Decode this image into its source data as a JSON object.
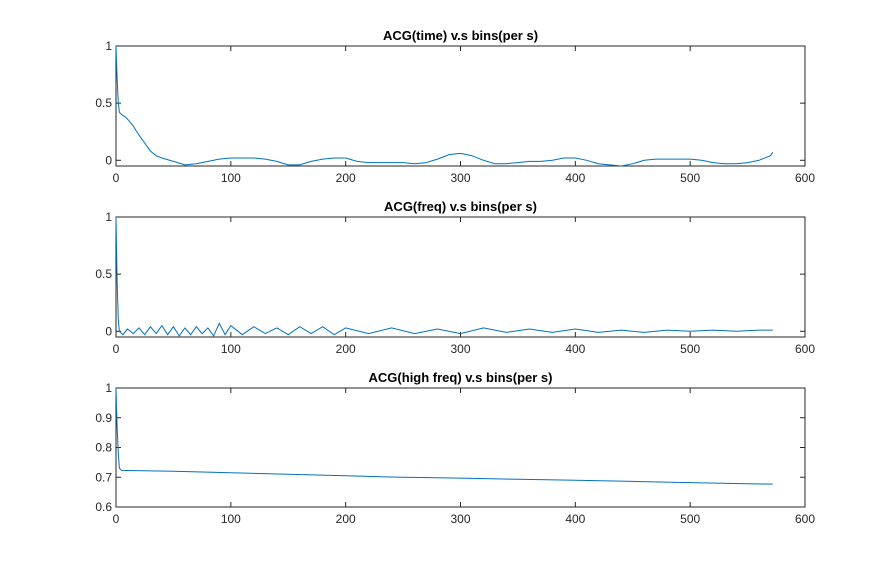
{
  "colors": {
    "series": "#0072BD",
    "axes": "#262626"
  },
  "chart_data": [
    {
      "type": "line",
      "title": "ACG(time) v.s bins(per s)",
      "xlabel": "",
      "ylabel": "",
      "xlim": [
        0,
        600
      ],
      "ylim": [
        -0.05,
        1
      ],
      "xticks": [
        0,
        100,
        200,
        300,
        400,
        500,
        600
      ],
      "yticks": [
        0,
        0.5,
        1
      ],
      "xtick_labels": [
        "0",
        "100",
        "200",
        "300",
        "400",
        "500",
        "600"
      ],
      "ytick_labels": [
        "0",
        "0.5",
        "1"
      ],
      "grid": false,
      "series": [
        {
          "x": [
            0,
            1,
            2,
            3,
            5,
            8,
            10,
            15,
            20,
            25,
            30,
            35,
            40,
            50,
            60,
            70,
            80,
            90,
            100,
            110,
            120,
            130,
            140,
            150,
            160,
            170,
            180,
            190,
            200,
            210,
            220,
            230,
            240,
            250,
            260,
            270,
            280,
            290,
            300,
            310,
            320,
            330,
            340,
            350,
            360,
            370,
            380,
            390,
            400,
            410,
            420,
            430,
            440,
            450,
            460,
            470,
            480,
            490,
            500,
            510,
            520,
            530,
            540,
            550,
            560,
            570,
            572
          ],
          "values": [
            1,
            0.72,
            0.5,
            0.42,
            0.4,
            0.38,
            0.36,
            0.3,
            0.22,
            0.15,
            0.08,
            0.04,
            0.02,
            -0.01,
            -0.04,
            -0.03,
            -0.01,
            0.01,
            0.02,
            0.02,
            0.02,
            0.01,
            -0.01,
            -0.04,
            -0.04,
            -0.01,
            0.01,
            0.02,
            0.02,
            -0.01,
            -0.02,
            -0.02,
            -0.02,
            -0.02,
            -0.03,
            -0.02,
            0.01,
            0.05,
            0.06,
            0.04,
            0.0,
            -0.03,
            -0.03,
            -0.02,
            -0.01,
            -0.01,
            0.0,
            0.02,
            0.02,
            0.0,
            -0.03,
            -0.04,
            -0.05,
            -0.03,
            0.0,
            0.01,
            0.01,
            0.01,
            0.01,
            0.0,
            -0.02,
            -0.03,
            -0.03,
            -0.02,
            0.0,
            0.04,
            0.07
          ]
        }
      ]
    },
    {
      "type": "line",
      "title": "ACG(freq) v.s bins(per s)",
      "xlabel": "",
      "ylabel": "",
      "xlim": [
        0,
        600
      ],
      "ylim": [
        -0.05,
        1
      ],
      "xticks": [
        0,
        100,
        200,
        300,
        400,
        500,
        600
      ],
      "yticks": [
        0,
        0.5,
        1
      ],
      "xtick_labels": [
        "0",
        "100",
        "200",
        "300",
        "400",
        "500",
        "600"
      ],
      "ytick_labels": [
        "0",
        "0.5",
        "1"
      ],
      "grid": false,
      "series": [
        {
          "x": [
            0,
            1,
            2,
            3,
            6,
            10,
            15,
            20,
            25,
            30,
            35,
            40,
            45,
            50,
            55,
            60,
            65,
            70,
            75,
            80,
            85,
            90,
            95,
            100,
            110,
            120,
            130,
            140,
            150,
            160,
            170,
            180,
            190,
            200,
            220,
            240,
            260,
            280,
            300,
            320,
            340,
            360,
            380,
            400,
            420,
            440,
            460,
            480,
            500,
            520,
            540,
            560,
            572
          ],
          "values": [
            1,
            0.45,
            0.1,
            0.0,
            -0.03,
            0.02,
            -0.02,
            0.03,
            -0.03,
            0.04,
            -0.02,
            0.05,
            -0.03,
            0.04,
            -0.04,
            0.03,
            -0.03,
            0.04,
            -0.02,
            0.03,
            -0.04,
            0.07,
            -0.03,
            0.05,
            -0.03,
            0.04,
            -0.02,
            0.03,
            -0.03,
            0.04,
            -0.02,
            0.04,
            -0.03,
            0.03,
            -0.02,
            0.03,
            -0.02,
            0.02,
            -0.02,
            0.03,
            -0.01,
            0.02,
            -0.01,
            0.02,
            -0.01,
            0.01,
            -0.01,
            0.01,
            0.0,
            0.01,
            0.0,
            0.01,
            0.01
          ]
        }
      ]
    },
    {
      "type": "line",
      "title": "ACG(high freq) v.s bins(per s)",
      "xlabel": "",
      "ylabel": "",
      "xlim": [
        0,
        600
      ],
      "ylim": [
        0.6,
        1
      ],
      "xticks": [
        0,
        100,
        200,
        300,
        400,
        500,
        600
      ],
      "yticks": [
        0.6,
        0.7,
        0.8,
        0.9,
        1
      ],
      "xtick_labels": [
        "0",
        "100",
        "200",
        "300",
        "400",
        "500",
        "600"
      ],
      "ytick_labels": [
        "0.6",
        "0.7",
        "0.8",
        "0.9",
        "1"
      ],
      "grid": false,
      "series": [
        {
          "x": [
            0,
            1,
            2,
            3,
            5,
            50,
            100,
            150,
            200,
            250,
            300,
            350,
            400,
            450,
            500,
            550,
            572
          ],
          "values": [
            1,
            0.87,
            0.78,
            0.73,
            0.723,
            0.72,
            0.715,
            0.71,
            0.705,
            0.7,
            0.697,
            0.693,
            0.69,
            0.686,
            0.682,
            0.678,
            0.677
          ]
        }
      ]
    }
  ]
}
